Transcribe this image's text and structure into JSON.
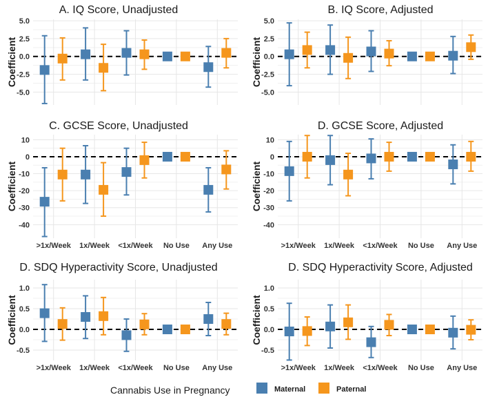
{
  "chart_data": [
    {
      "type": "point-errorbar",
      "title": "A. IQ Score, Unadjusted",
      "ylabel": "Coefficient",
      "ylim": [
        -6.8,
        5.2
      ],
      "yticks": [
        -5,
        -2.5,
        0,
        2.5,
        5
      ],
      "ytick_labels": [
        "-5.0",
        "-2.5",
        "0.0",
        "2.5",
        "5.0"
      ],
      "categories": [
        "Any Use",
        "No Use",
        "<1x/Week",
        "1x/Week",
        ">1x/Week"
      ],
      "categories_order": [
        ">1x/Week",
        "1x/Week",
        "<1x/Week",
        "No Use",
        "Any Use"
      ],
      "show_xticks": false,
      "series": [
        {
          "name": "Maternal",
          "values": {
            ">1x/Week": -1.9,
            "1x/Week": 0.3,
            "<1x/Week": 0.5,
            "No Use": 0.0,
            "Any Use": -1.5
          },
          "lower": {
            ">1x/Week": -6.6,
            "1x/Week": -3.3,
            "<1x/Week": -2.6,
            "No Use": 0.0,
            "Any Use": -4.3
          },
          "upper": {
            ">1x/Week": 2.9,
            "1x/Week": 4.0,
            "<1x/Week": 3.6,
            "No Use": 0.0,
            "Any Use": 1.4
          }
        },
        {
          "name": "Paternal",
          "values": {
            ">1x/Week": -0.3,
            "1x/Week": -1.6,
            "<1x/Week": 0.3,
            "No Use": 0.0,
            "Any Use": 0.5
          },
          "lower": {
            ">1x/Week": -3.3,
            "1x/Week": -4.8,
            "<1x/Week": -1.8,
            "No Use": 0.0,
            "Any Use": -1.6
          },
          "upper": {
            ">1x/Week": 2.6,
            "1x/Week": 1.7,
            "<1x/Week": 2.3,
            "No Use": 0.0,
            "Any Use": 2.5
          }
        }
      ]
    },
    {
      "type": "point-errorbar",
      "title": "B. IQ Score, Adjusted",
      "ylabel": "Coefficient",
      "ylim": [
        -6.8,
        5.2
      ],
      "yticks": [
        -5,
        -2.5,
        0,
        2.5,
        5
      ],
      "ytick_labels": [
        "-5.0",
        "-2.5",
        "0.0",
        "2.5",
        "5.0"
      ],
      "categories_order": [
        ">1x/Week",
        "1x/Week",
        "<1x/Week",
        "No Use",
        "Any Use"
      ],
      "show_xticks": false,
      "series": [
        {
          "name": "Maternal",
          "values": {
            ">1x/Week": 0.3,
            "1x/Week": 0.9,
            "<1x/Week": 0.7,
            "No Use": 0.0,
            "Any Use": 0.1
          },
          "lower": {
            ">1x/Week": -4.1,
            "1x/Week": -2.5,
            "<1x/Week": -2.1,
            "No Use": 0.0,
            "Any Use": -2.4
          },
          "upper": {
            ">1x/Week": 4.7,
            "1x/Week": 4.4,
            "<1x/Week": 3.6,
            "No Use": 0.0,
            "Any Use": 2.8
          }
        },
        {
          "name": "Paternal",
          "values": {
            ">1x/Week": 0.9,
            "1x/Week": -0.2,
            "<1x/Week": 0.4,
            "No Use": 0.0,
            "Any Use": 1.3
          },
          "lower": {
            ">1x/Week": -1.6,
            "1x/Week": -3.1,
            "<1x/Week": -1.3,
            "No Use": 0.0,
            "Any Use": -0.4
          },
          "upper": {
            ">1x/Week": 3.4,
            "1x/Week": 2.7,
            "<1x/Week": 2.2,
            "No Use": 0.0,
            "Any Use": 3.0
          }
        }
      ]
    },
    {
      "type": "point-errorbar",
      "title": "C. GCSE Score, Unadjusted",
      "ylabel": "Coefficient",
      "ylim": [
        -48,
        13
      ],
      "yticks": [
        -40,
        -30,
        -20,
        -10,
        0,
        10
      ],
      "ytick_labels": [
        "-40",
        "-30",
        "-20",
        "-10",
        "0",
        "10"
      ],
      "categories_order": [
        ">1x/Week",
        "1x/Week",
        "<1x/Week",
        "No Use",
        "Any Use"
      ],
      "show_xticks": true,
      "series": [
        {
          "name": "Maternal",
          "values": {
            ">1x/Week": -26.5,
            "1x/Week": -10.5,
            "<1x/Week": -9.0,
            "No Use": 0.0,
            "Any Use": -19.5
          },
          "lower": {
            ">1x/Week": -47.0,
            "1x/Week": -27.5,
            "<1x/Week": -22.5,
            "No Use": 0.0,
            "Any Use": -32.5
          },
          "upper": {
            ">1x/Week": -6.5,
            "1x/Week": 6.5,
            "<1x/Week": 5.0,
            "No Use": 0.0,
            "Any Use": -6.5
          }
        },
        {
          "name": "Paternal",
          "values": {
            ">1x/Week": -10.5,
            "1x/Week": -19.5,
            "<1x/Week": -2.0,
            "No Use": 0.0,
            "Any Use": -7.5
          },
          "lower": {
            ">1x/Week": -26.0,
            "1x/Week": -35.0,
            "<1x/Week": -12.5,
            "No Use": 0.0,
            "Any Use": -19.0
          },
          "upper": {
            ">1x/Week": 5.0,
            "1x/Week": -3.5,
            "<1x/Week": 8.5,
            "No Use": 0.0,
            "Any Use": 3.5
          }
        }
      ]
    },
    {
      "type": "point-errorbar",
      "title": "D. GCSE Score, Adjusted",
      "ylabel": "Coefficient",
      "ylim": [
        -48,
        13
      ],
      "yticks": [
        -40,
        -30,
        -20,
        -10,
        0,
        10
      ],
      "ytick_labels": [
        "-40",
        "-30",
        "-20",
        "-10",
        "0",
        "10"
      ],
      "categories_order": [
        ">1x/Week",
        "1x/Week",
        "<1x/Week",
        "No Use",
        "Any Use"
      ],
      "show_xticks": true,
      "series": [
        {
          "name": "Maternal",
          "values": {
            ">1x/Week": -8.5,
            "1x/Week": -2.0,
            "<1x/Week": -1.0,
            "No Use": 0.0,
            "Any Use": -4.5
          },
          "lower": {
            ">1x/Week": -26.0,
            "1x/Week": -16.5,
            "<1x/Week": -13.0,
            "No Use": 0.0,
            "Any Use": -16.0
          },
          "upper": {
            ">1x/Week": 9.0,
            "1x/Week": 12.5,
            "<1x/Week": 10.5,
            "No Use": 0.0,
            "Any Use": 7.0
          }
        },
        {
          "name": "Paternal",
          "values": {
            ">1x/Week": 0.0,
            "1x/Week": -10.5,
            "<1x/Week": 0.0,
            "No Use": 0.0,
            "Any Use": 0.0
          },
          "lower": {
            ">1x/Week": -12.5,
            "1x/Week": -23.0,
            "<1x/Week": -8.5,
            "No Use": 0.0,
            "Any Use": -8.5
          },
          "upper": {
            ">1x/Week": 12.5,
            "1x/Week": 2.0,
            "<1x/Week": 8.5,
            "No Use": 0.0,
            "Any Use": 9.0
          }
        }
      ]
    },
    {
      "type": "point-errorbar",
      "title": "D. SDQ Hyperactivity Score, Unadjusted",
      "ylabel": "Coefficient",
      "ylim": [
        -0.75,
        1.2
      ],
      "yticks": [
        -0.5,
        0,
        0.5,
        1.0
      ],
      "ytick_labels": [
        "-0.5",
        "0.0",
        "0.5",
        "1.0"
      ],
      "categories_order": [
        ">1x/Week",
        "1x/Week",
        "<1x/Week",
        "No Use",
        "Any Use"
      ],
      "show_xticks": true,
      "series": [
        {
          "name": "Maternal",
          "values": {
            ">1x/Week": 0.39,
            "1x/Week": 0.3,
            "<1x/Week": -0.14,
            "No Use": 0.0,
            "Any Use": 0.25
          },
          "lower": {
            ">1x/Week": -0.29,
            "1x/Week": -0.22,
            "<1x/Week": -0.53,
            "No Use": 0.0,
            "Any Use": -0.15
          },
          "upper": {
            ">1x/Week": 1.08,
            "1x/Week": 0.81,
            "<1x/Week": 0.25,
            "No Use": 0.0,
            "Any Use": 0.65
          }
        },
        {
          "name": "Paternal",
          "values": {
            ">1x/Week": 0.13,
            "1x/Week": 0.32,
            "<1x/Week": 0.12,
            "No Use": 0.0,
            "Any Use": 0.13
          },
          "lower": {
            ">1x/Week": -0.26,
            "1x/Week": -0.13,
            "<1x/Week": -0.13,
            "No Use": 0.0,
            "Any Use": -0.13
          },
          "upper": {
            ">1x/Week": 0.52,
            "1x/Week": 0.77,
            "<1x/Week": 0.38,
            "No Use": 0.0,
            "Any Use": 0.39
          }
        }
      ]
    },
    {
      "type": "point-errorbar",
      "title": "D. SDQ Hyperactivity Score, Adjusted",
      "ylabel": "Coefficient",
      "ylim": [
        -0.75,
        1.2
      ],
      "yticks": [
        -0.5,
        0,
        0.5,
        1.0
      ],
      "ytick_labels": [
        "-0.5",
        "0.0",
        "0.5",
        "1.0"
      ],
      "categories_order": [
        ">1x/Week",
        "1x/Week",
        "<1x/Week",
        "No Use",
        "Any Use"
      ],
      "show_xticks": true,
      "series": [
        {
          "name": "Maternal",
          "values": {
            ">1x/Week": -0.05,
            "1x/Week": 0.07,
            "<1x/Week": -0.31,
            "No Use": 0.0,
            "Any Use": -0.08
          },
          "lower": {
            ">1x/Week": -0.74,
            "1x/Week": -0.45,
            "<1x/Week": -0.68,
            "No Use": 0.0,
            "Any Use": -0.47
          },
          "upper": {
            ">1x/Week": 0.63,
            "1x/Week": 0.59,
            "<1x/Week": 0.07,
            "No Use": 0.0,
            "Any Use": 0.32
          }
        },
        {
          "name": "Paternal",
          "values": {
            ">1x/Week": -0.04,
            "1x/Week": 0.17,
            "<1x/Week": 0.11,
            "No Use": 0.0,
            "Any Use": -0.01
          },
          "lower": {
            ">1x/Week": -0.39,
            "1x/Week": -0.24,
            "<1x/Week": -0.15,
            "No Use": 0.0,
            "Any Use": -0.25
          },
          "upper": {
            ">1x/Week": 0.3,
            "1x/Week": 0.59,
            "<1x/Week": 0.36,
            "No Use": 0.0,
            "Any Use": 0.23
          }
        }
      ]
    }
  ],
  "legend": {
    "title": "Cannabis Use in Pregnancy",
    "items": [
      {
        "label": "Maternal",
        "color": "#4a7fb0"
      },
      {
        "label": "Paternal",
        "color": "#f5961d"
      }
    ],
    "position": "bottom"
  },
  "colors": {
    "maternal": "#4a7fb0",
    "paternal": "#f5961d",
    "grid": "#e6e6e6",
    "reference_line": "#000000"
  }
}
